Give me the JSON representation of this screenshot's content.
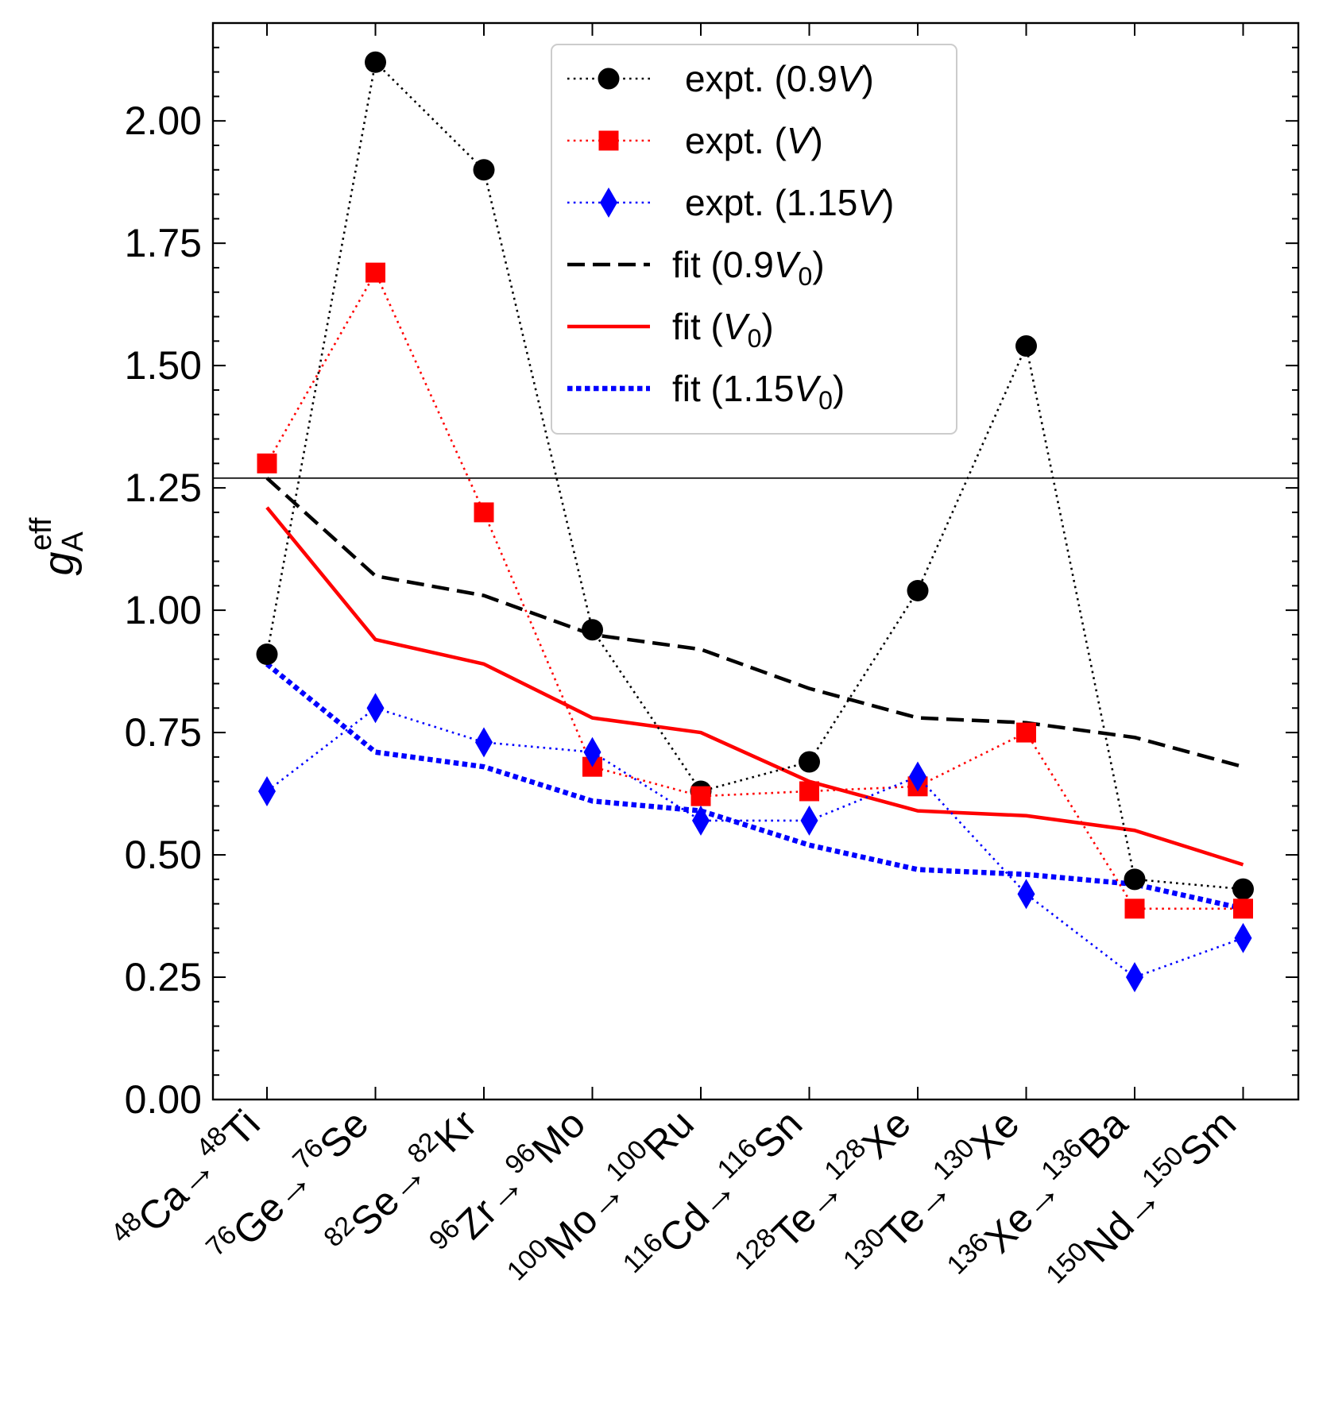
{
  "chart_data": {
    "type": "line",
    "title": "",
    "xlabel": "",
    "ylabel": {
      "base": "g",
      "sup": "eff",
      "sub": "A"
    },
    "ylim": [
      0,
      2.2
    ],
    "yticks": [
      "0.00",
      "0.25",
      "0.50",
      "0.75",
      "1.00",
      "1.25",
      "1.50",
      "1.75",
      "2.00"
    ],
    "reference_line": 1.27,
    "categories": [
      {
        "pre": "48",
        "a": "Ca",
        "post": "48",
        "b": "Ti"
      },
      {
        "pre": "76",
        "a": "Ge",
        "post": "76",
        "b": "Se"
      },
      {
        "pre": "82",
        "a": "Se",
        "post": "82",
        "b": "Kr"
      },
      {
        "pre": "96",
        "a": "Zr",
        "post": "96",
        "b": "Mo"
      },
      {
        "pre": "100",
        "a": "Mo",
        "post": "100",
        "b": "Ru"
      },
      {
        "pre": "116",
        "a": "Cd",
        "post": "116",
        "b": "Sn"
      },
      {
        "pre": "128",
        "a": "Te",
        "post": "128",
        "b": "Xe"
      },
      {
        "pre": "130",
        "a": "Te",
        "post": "130",
        "b": "Xe"
      },
      {
        "pre": "136",
        "a": "Xe",
        "post": "136",
        "b": "Ba"
      },
      {
        "pre": "150",
        "a": "Nd",
        "post": "150",
        "b": "Sm"
      }
    ],
    "arrow": "→",
    "series": [
      {
        "name": "expt. (0.9V)",
        "legend": {
          "pre": "expt. (0.9",
          "it": "V",
          "sub": "",
          "post": ")"
        },
        "color": "#000000",
        "style": "dotted",
        "marker": "circle",
        "values": [
          0.91,
          2.12,
          1.9,
          0.96,
          0.63,
          0.69,
          1.04,
          1.54,
          0.45,
          0.43
        ]
      },
      {
        "name": "expt. (V)",
        "legend": {
          "pre": "expt. (",
          "it": "V",
          "sub": "",
          "post": ")"
        },
        "color": "#ff0000",
        "style": "dotted",
        "marker": "square",
        "values": [
          1.3,
          1.69,
          1.2,
          0.68,
          0.62,
          0.63,
          0.64,
          0.75,
          0.39,
          0.39
        ]
      },
      {
        "name": "expt. (1.15V)",
        "legend": {
          "pre": "expt. (1.15",
          "it": "V",
          "sub": "",
          "post": ")"
        },
        "color": "#0000ff",
        "style": "dotted",
        "marker": "diamond",
        "values": [
          0.63,
          0.8,
          0.73,
          0.71,
          0.57,
          0.57,
          0.66,
          0.42,
          0.25,
          0.33
        ]
      },
      {
        "name": "fit (0.9V0)",
        "legend": {
          "pre": "fit (0.9",
          "it": "V",
          "sub": "0",
          "post": ")"
        },
        "color": "#000000",
        "style": "dashed",
        "marker": "none",
        "values": [
          1.27,
          1.07,
          1.03,
          0.95,
          0.92,
          0.84,
          0.78,
          0.77,
          0.74,
          0.68
        ]
      },
      {
        "name": "fit (V0)",
        "legend": {
          "pre": "fit (",
          "it": "V",
          "sub": "0",
          "post": ")"
        },
        "color": "#ff0000",
        "style": "solid",
        "marker": "none",
        "values": [
          1.21,
          0.94,
          0.89,
          0.78,
          0.75,
          0.65,
          0.59,
          0.58,
          0.55,
          0.48
        ]
      },
      {
        "name": "fit (1.15V0)",
        "legend": {
          "pre": "fit (1.15",
          "it": "V",
          "sub": "0",
          "post": ")"
        },
        "color": "#0000ff",
        "style": "heavydotted",
        "marker": "none",
        "values": [
          0.89,
          0.71,
          0.68,
          0.61,
          0.59,
          0.52,
          0.47,
          0.46,
          0.44,
          0.39
        ]
      }
    ],
    "legend_position": "top-center"
  }
}
